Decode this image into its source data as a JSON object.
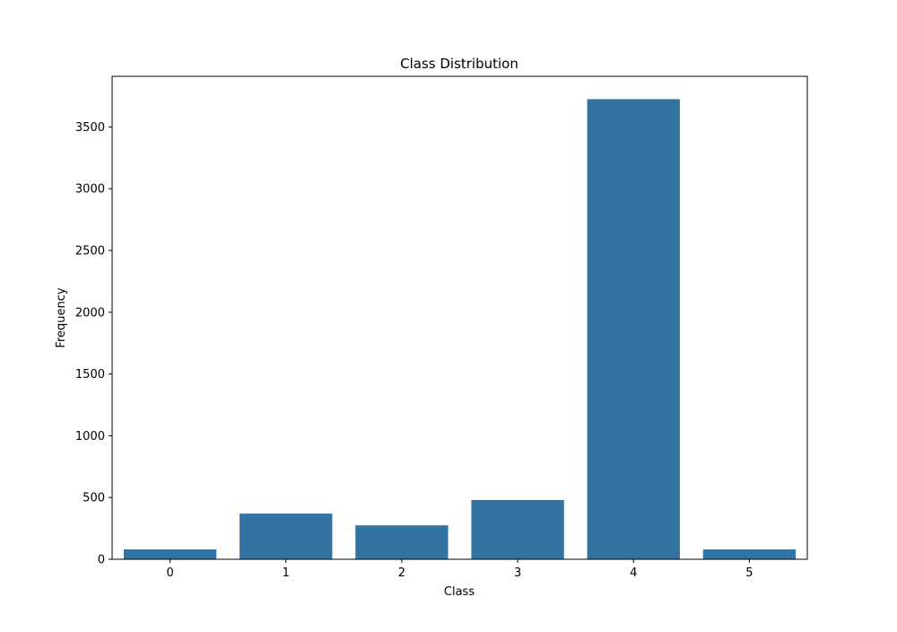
{
  "chart_data": {
    "type": "bar",
    "title": "Class Distribution",
    "xlabel": "Class",
    "ylabel": "Frequency",
    "categories": [
      "0",
      "1",
      "2",
      "3",
      "4",
      "5"
    ],
    "values": [
      80,
      370,
      275,
      480,
      3725,
      80
    ],
    "ylim": [
      0,
      3910
    ],
    "yticks": [
      0,
      500,
      1000,
      1500,
      2000,
      2500,
      3000,
      3500
    ],
    "grid": false,
    "bar_color": "#3274a1"
  }
}
